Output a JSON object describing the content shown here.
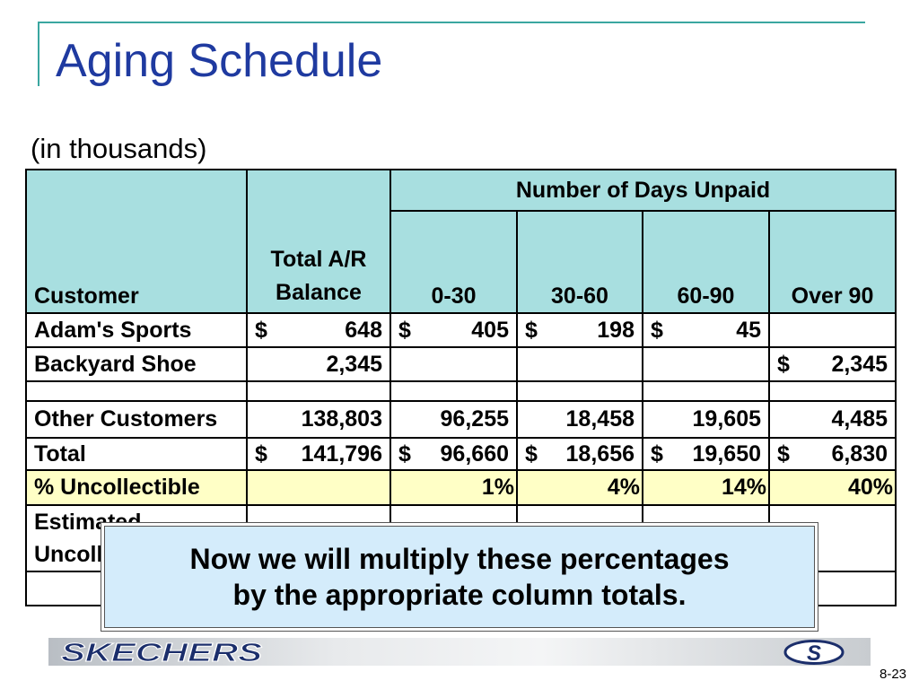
{
  "slide": {
    "title": "Aging Schedule",
    "subtitle": "(in thousands)",
    "page_number": "8-23"
  },
  "table": {
    "header": {
      "customer": "Customer",
      "total_line1": "Total A/R",
      "total_line2": "Balance",
      "group": "Number of Days Unpaid",
      "buckets": [
        "0-30",
        "30-60",
        "60-90",
        "Over 90"
      ]
    },
    "rows": [
      {
        "name": "Adam's Sports",
        "total": {
          "dollar": "$",
          "value": "648"
        },
        "cells": [
          {
            "dollar": "$",
            "value": "405"
          },
          {
            "dollar": "$",
            "value": "198"
          },
          {
            "dollar": "$",
            "value": "45"
          },
          {
            "dollar": "",
            "value": ""
          }
        ]
      },
      {
        "name": "Backyard Shoe",
        "total": {
          "dollar": "",
          "value": "2,345"
        },
        "cells": [
          {
            "dollar": "",
            "value": ""
          },
          {
            "dollar": "",
            "value": ""
          },
          {
            "dollar": "",
            "value": ""
          },
          {
            "dollar": "$",
            "value": "2,345"
          }
        ]
      },
      {
        "name": "",
        "total": {
          "dollar": "",
          "value": ""
        },
        "cells": [
          {
            "dollar": "",
            "value": ""
          },
          {
            "dollar": "",
            "value": ""
          },
          {
            "dollar": "",
            "value": ""
          },
          {
            "dollar": "",
            "value": ""
          }
        ]
      },
      {
        "name": "Other Customers",
        "total": {
          "dollar": "",
          "value": "138,803"
        },
        "cells": [
          {
            "dollar": "",
            "value": "96,255"
          },
          {
            "dollar": "",
            "value": "18,458"
          },
          {
            "dollar": "",
            "value": "19,605"
          },
          {
            "dollar": "",
            "value": "4,485"
          }
        ]
      },
      {
        "name": "Total",
        "total": {
          "dollar": "$",
          "value": "141,796"
        },
        "cells": [
          {
            "dollar": "$",
            "value": "96,660"
          },
          {
            "dollar": "$",
            "value": "18,656"
          },
          {
            "dollar": "$",
            "value": "19,650"
          },
          {
            "dollar": "$",
            "value": "6,830"
          }
        ]
      }
    ],
    "pct_row": {
      "label": "% Uncollectible",
      "values": [
        "1%",
        "4%",
        "14%",
        "40%"
      ]
    },
    "estimated_row": {
      "line1": "Estimated",
      "line2": "Uncoll"
    }
  },
  "callout": {
    "line1": "Now we will multiply these percentages",
    "line2": "by the appropriate column totals."
  },
  "logos": {
    "brand_text": "SKECHERS",
    "brand_color": "#1b2e6b",
    "s_mark": "S"
  },
  "colors": {
    "title": "#1f3aa0",
    "header_fill": "#a8dfe0",
    "highlight_fill": "#ffffc6",
    "callout_fill": "#d4ecfb"
  }
}
